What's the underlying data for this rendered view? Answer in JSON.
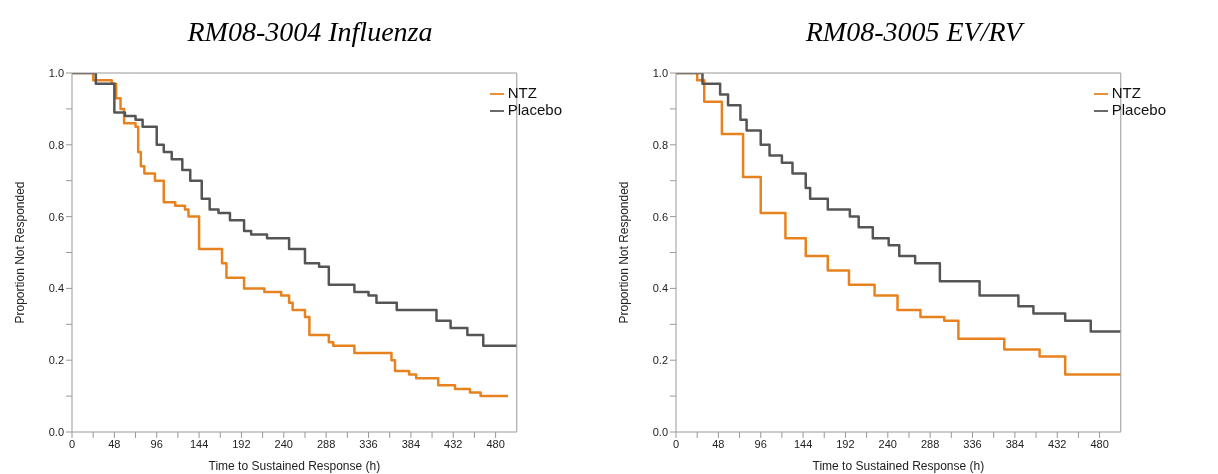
{
  "chart_data": [
    {
      "type": "step",
      "title": "RM08-3004 Influenza",
      "xlabel": "Time to Sustained Response (h)",
      "ylabel": "Proportion Not Responded",
      "legend": "top right",
      "grid": false,
      "xlim": [
        0,
        504
      ],
      "ylim": [
        0,
        1
      ],
      "xticks": [
        0,
        {
          "value": 24,
          "label": null
        },
        48,
        {
          "value": 72,
          "label": null
        },
        96,
        {
          "value": 120,
          "label": null
        },
        144,
        {
          "value": 168,
          "label": null
        },
        192,
        {
          "value": 216,
          "label": null
        },
        240,
        {
          "value": 264,
          "label": null
        },
        288,
        {
          "value": 312,
          "label": null
        },
        336,
        {
          "value": 360,
          "label": null
        },
        384,
        {
          "value": 408,
          "label": null
        },
        432,
        {
          "value": 456,
          "label": null
        },
        480
      ],
      "yticks": [
        {
          "value": 0,
          "label": "0.0"
        },
        {
          "value": 0.1,
          "label": null
        },
        {
          "value": 0.2,
          "label": "0.2"
        },
        {
          "value": 0.3,
          "label": null
        },
        {
          "value": 0.4,
          "label": "0.4"
        },
        {
          "value": 0.5,
          "label": null
        },
        {
          "value": 0.6,
          "label": "0.6"
        },
        {
          "value": 0.7,
          "label": null
        },
        {
          "value": 0.8,
          "label": "0.8"
        },
        {
          "value": 0.9,
          "label": null
        },
        {
          "value": 1,
          "label": "1.0"
        }
      ],
      "series": [
        {
          "name": "NTZ",
          "color": "#e8821e",
          "x": [
            0,
            24,
            45,
            50,
            55,
            59,
            72,
            75,
            78,
            82,
            94,
            104,
            117,
            128,
            132,
            144,
            170,
            175,
            195,
            218,
            237,
            246,
            250,
            264,
            269,
            291,
            296,
            320,
            362,
            366,
            382,
            390,
            415,
            434,
            451,
            463,
            494
          ],
          "values": [
            1.0,
            0.98,
            0.97,
            0.93,
            0.9,
            0.86,
            0.85,
            0.78,
            0.74,
            0.72,
            0.7,
            0.64,
            0.63,
            0.62,
            0.6,
            0.51,
            0.47,
            0.43,
            0.4,
            0.39,
            0.38,
            0.36,
            0.34,
            0.32,
            0.27,
            0.25,
            0.24,
            0.22,
            0.2,
            0.17,
            0.16,
            0.15,
            0.13,
            0.12,
            0.11,
            0.1,
            0.1
          ]
        },
        {
          "name": "Placebo",
          "color": "#555555",
          "x": [
            0,
            27,
            48,
            60,
            72,
            80,
            96,
            104,
            113,
            125,
            134,
            147,
            156,
            166,
            179,
            195,
            203,
            221,
            246,
            264,
            280,
            291,
            320,
            336,
            345,
            368,
            413,
            429,
            448,
            466,
            504
          ],
          "values": [
            1.0,
            0.97,
            0.89,
            0.88,
            0.87,
            0.85,
            0.8,
            0.78,
            0.76,
            0.73,
            0.7,
            0.65,
            0.62,
            0.61,
            0.59,
            0.56,
            0.55,
            0.54,
            0.51,
            0.47,
            0.46,
            0.41,
            0.39,
            0.38,
            0.36,
            0.34,
            0.31,
            0.29,
            0.27,
            0.24,
            0.24
          ]
        }
      ]
    },
    {
      "type": "step",
      "title": "RM08-3005 EV/RV",
      "xlabel": "Time to Sustained Response (h)",
      "ylabel": "Proportion Not Responded",
      "legend": "top right",
      "grid": false,
      "xlim": [
        0,
        504
      ],
      "ylim": [
        0,
        1
      ],
      "xticks": [
        0,
        {
          "value": 24,
          "label": null
        },
        48,
        {
          "value": 72,
          "label": null
        },
        96,
        {
          "value": 120,
          "label": null
        },
        144,
        {
          "value": 168,
          "label": null
        },
        192,
        {
          "value": 216,
          "label": null
        },
        240,
        {
          "value": 264,
          "label": null
        },
        288,
        {
          "value": 312,
          "label": null
        },
        336,
        {
          "value": 360,
          "label": null
        },
        384,
        {
          "value": 408,
          "label": null
        },
        432,
        {
          "value": 456,
          "label": null
        },
        480
      ],
      "yticks": [
        {
          "value": 0,
          "label": "0.0"
        },
        {
          "value": 0.1,
          "label": null
        },
        {
          "value": 0.2,
          "label": "0.2"
        },
        {
          "value": 0.3,
          "label": null
        },
        {
          "value": 0.4,
          "label": "0.4"
        },
        {
          "value": 0.5,
          "label": null
        },
        {
          "value": 0.6,
          "label": "0.6"
        },
        {
          "value": 0.7,
          "label": null
        },
        {
          "value": 0.8,
          "label": "0.8"
        },
        {
          "value": 0.9,
          "label": null
        },
        {
          "value": 1,
          "label": "1.0"
        }
      ],
      "series": [
        {
          "name": "NTZ",
          "color": "#e8821e",
          "x": [
            0,
            24,
            32,
            52,
            76,
            96,
            124,
            147,
            172,
            196,
            225,
            251,
            277,
            304,
            320,
            372,
            412,
            441,
            504
          ],
          "values": [
            1.0,
            0.98,
            0.92,
            0.83,
            0.71,
            0.61,
            0.54,
            0.49,
            0.45,
            0.41,
            0.38,
            0.34,
            0.32,
            0.31,
            0.26,
            0.23,
            0.21,
            0.16,
            0.16
          ]
        },
        {
          "name": "Placebo",
          "color": "#555555",
          "x": [
            0,
            30,
            50,
            59,
            73,
            80,
            96,
            106,
            120,
            132,
            147,
            152,
            172,
            197,
            207,
            223,
            241,
            253,
            271,
            299,
            344,
            388,
            405,
            441,
            470,
            504
          ],
          "values": [
            1.0,
            0.97,
            0.94,
            0.91,
            0.87,
            0.84,
            0.8,
            0.77,
            0.75,
            0.72,
            0.68,
            0.65,
            0.62,
            0.6,
            0.57,
            0.54,
            0.52,
            0.49,
            0.47,
            0.42,
            0.38,
            0.35,
            0.33,
            0.31,
            0.28,
            0.28
          ]
        }
      ]
    }
  ]
}
